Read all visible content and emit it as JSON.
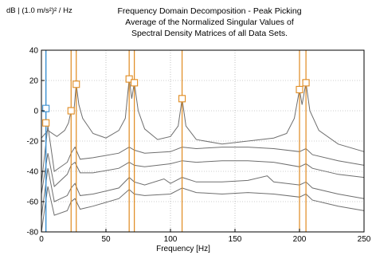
{
  "chart_data": {
    "type": "line",
    "title_lines": [
      "Frequency Domain Decomposition - Peak Picking",
      "Average of the Normalized Singular Values of",
      "Spectral Density Matrices of all Data Sets."
    ],
    "xlabel": "Frequency [Hz]",
    "ylabel": "dB | (1.0 m/s²)² / Hz",
    "xlim": [
      0,
      250
    ],
    "ylim": [
      -80,
      40
    ],
    "x_ticks": [
      0,
      50,
      100,
      150,
      200,
      250
    ],
    "y_ticks": [
      40,
      20,
      0,
      -20,
      -40,
      -60,
      -80
    ],
    "grid": true,
    "line_color": "#6e6e6e",
    "peak_line_color": "#e08a1e",
    "picked_peak_line_color": "#3a8fd0",
    "picked_peaks": [
      {
        "frequency": 3.5,
        "markers_db": [
          1.5,
          -8
        ]
      }
    ],
    "peaks": [
      {
        "frequency": 23,
        "marker_db": 0
      },
      {
        "frequency": 27,
        "marker_db": 17.5
      },
      {
        "frequency": 68,
        "marker_db": 21
      },
      {
        "frequency": 72,
        "marker_db": 18.5
      },
      {
        "frequency": 109,
        "marker_db": 8
      },
      {
        "frequency": 200,
        "marker_db": 14
      },
      {
        "frequency": 205,
        "marker_db": 18.5
      }
    ],
    "series": [
      {
        "x": [
          0,
          5,
          12,
          18,
          21,
          23,
          25,
          27,
          29,
          32,
          40,
          50,
          60,
          65,
          68,
          70,
          72,
          75,
          80,
          90,
          100,
          106,
          109,
          112,
          120,
          140,
          160,
          180,
          190,
          196,
          200,
          202,
          205,
          208,
          215,
          230,
          250
        ],
        "values": [
          -18,
          -13,
          -17,
          -13,
          -8,
          0,
          -2,
          17.5,
          4,
          -5,
          -15,
          -18,
          -13,
          -5,
          21,
          8,
          18.5,
          0,
          -12,
          -19,
          -17,
          -10,
          8,
          -10,
          -19,
          -22,
          -20,
          -18,
          -15,
          -5,
          14,
          4,
          18.5,
          0,
          -13,
          -22,
          -27
        ]
      },
      {
        "x": [
          0,
          5,
          10,
          20,
          23,
          26,
          30,
          40,
          60,
          68,
          72,
          80,
          100,
          109,
          120,
          140,
          160,
          180,
          200,
          205,
          210,
          230,
          250
        ],
        "values": [
          -48,
          -10,
          -40,
          -34,
          -28,
          -24,
          -32,
          -31,
          -28,
          -24,
          -26,
          -28,
          -27,
          -24,
          -25,
          -24,
          -24,
          -25,
          -27,
          -25,
          -29,
          -33,
          -36
        ]
      },
      {
        "x": [
          0,
          5,
          10,
          20,
          23,
          26,
          30,
          40,
          60,
          68,
          72,
          80,
          100,
          109,
          120,
          140,
          160,
          180,
          200,
          205,
          210,
          230,
          250
        ],
        "values": [
          -55,
          -28,
          -50,
          -42,
          -36,
          -34,
          -41,
          -41,
          -38,
          -34,
          -36,
          -37,
          -35,
          -33,
          -34,
          -33,
          -33,
          -34,
          -37,
          -35,
          -38,
          -42,
          -44
        ]
      },
      {
        "x": [
          0,
          5,
          10,
          20,
          23,
          26,
          30,
          40,
          60,
          68,
          72,
          80,
          95,
          100,
          109,
          120,
          140,
          160,
          175,
          180,
          200,
          205,
          210,
          230,
          250
        ],
        "values": [
          -70,
          -38,
          -60,
          -56,
          -51,
          -48,
          -56,
          -55,
          -51,
          -44,
          -47,
          -49,
          -45,
          -48,
          -44,
          -47,
          -47,
          -46,
          -43,
          -47,
          -49,
          -47,
          -51,
          -55,
          -58
        ]
      },
      {
        "x": [
          0,
          5,
          10,
          20,
          23,
          26,
          30,
          40,
          60,
          68,
          72,
          80,
          100,
          109,
          120,
          140,
          160,
          180,
          200,
          205,
          210,
          230,
          250
        ],
        "values": [
          -80,
          -50,
          -69,
          -66,
          -60,
          -58,
          -65,
          -63,
          -58,
          -52,
          -55,
          -56,
          -55,
          -51,
          -54,
          -55,
          -54,
          -55,
          -57,
          -55,
          -59,
          -63,
          -66
        ]
      }
    ]
  }
}
